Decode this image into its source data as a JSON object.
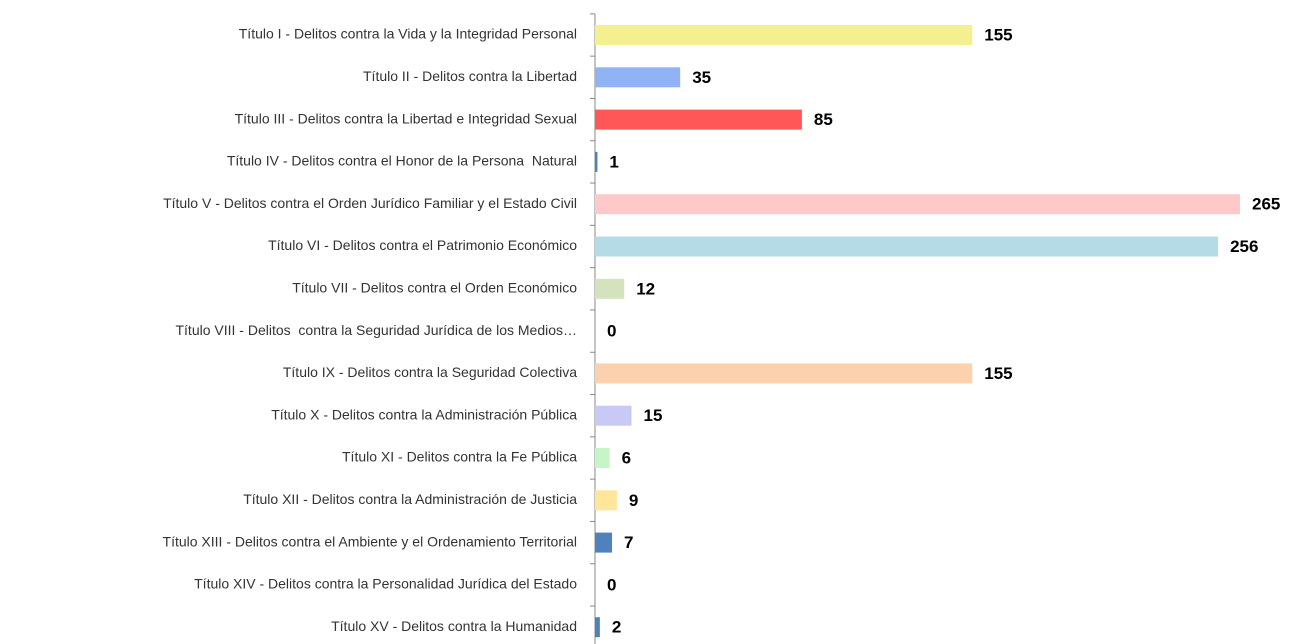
{
  "chart_data": {
    "type": "bar",
    "categories": [
      "Título I - Delitos contra la Vida y la Integridad Personal",
      "Título II - Delitos contra la Libertad",
      "Título III - Delitos contra la Libertad e Integridad Sexual",
      "Título IV - Delitos contra el Honor de la Persona  Natural",
      "Título V - Delitos contra el Orden Jurídico Familiar y el Estado Civil",
      "Título VI - Delitos contra el Patrimonio Económico",
      "Título VII - Delitos contra el Orden Económico",
      "Título VIII - Delitos  contra la Seguridad Jurídica de los Medios…",
      "Título IX - Delitos contra la Seguridad Colectiva",
      "Título X - Delitos contra la Administración Pública",
      "Título XI - Delitos contra la Fe Pública",
      "Título XII - Delitos contra la Administración de Justicia",
      "Título XIII - Delitos contra el Ambiente y el Ordenamiento Territorial",
      "Título XIV - Delitos contra la Personalidad Jurídica del Estado",
      "Título XV - Delitos contra la Humanidad"
    ],
    "values": [
      155,
      35,
      85,
      1,
      265,
      256,
      12,
      0,
      155,
      15,
      6,
      9,
      7,
      0,
      2
    ],
    "colors": [
      "#f5f08f",
      "#8fb3f5",
      "#ff5757",
      "#4f81bd",
      "#ffc9c9",
      "#b5dce6",
      "#d4e3bd",
      "#b3a2c7",
      "#fcd1ae",
      "#c9c9f7",
      "#c6f5c6",
      "#ffe699",
      "#4f81bd",
      "#999999",
      "#4f81bd"
    ],
    "orientation": "horizontal"
  }
}
